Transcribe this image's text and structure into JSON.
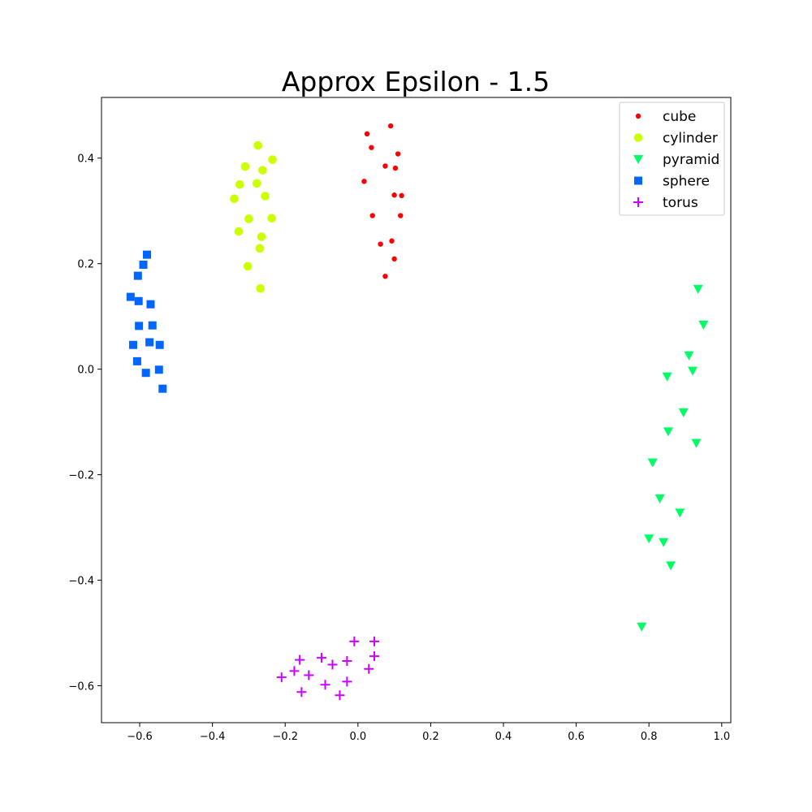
{
  "chart_data": {
    "type": "scatter",
    "title": "Approx Epsilon - 1.5",
    "xlabel": "",
    "ylabel": "",
    "xlim": [
      -0.705,
      1.025
    ],
    "ylim": [
      -0.67,
      0.515
    ],
    "xticks": [
      -0.6,
      -0.4,
      -0.2,
      0.0,
      0.2,
      0.4,
      0.6,
      0.8,
      1.0
    ],
    "xtick_labels": [
      "−0.6",
      "−0.4",
      "−0.2",
      "0.0",
      "0.2",
      "0.4",
      "0.6",
      "0.8",
      "1.0"
    ],
    "yticks": [
      -0.6,
      -0.4,
      -0.2,
      0.0,
      0.2,
      0.4
    ],
    "ytick_labels": [
      "−0.6",
      "−0.4",
      "−0.2",
      "0.0",
      "0.2",
      "0.4"
    ],
    "grid": false,
    "legend_position": "top-right",
    "series": [
      {
        "name": "cube",
        "marker": "dot",
        "color": "#ff0000",
        "points": [
          [
            0.09,
            0.461
          ],
          [
            0.025,
            0.446
          ],
          [
            0.037,
            0.42
          ],
          [
            0.11,
            0.408
          ],
          [
            0.075,
            0.385
          ],
          [
            0.103,
            0.381
          ],
          [
            0.017,
            0.356
          ],
          [
            0.1,
            0.33
          ],
          [
            0.12,
            0.329
          ],
          [
            0.04,
            0.291
          ],
          [
            0.117,
            0.291
          ],
          [
            0.093,
            0.243
          ],
          [
            0.062,
            0.237
          ],
          [
            0.1,
            0.209
          ],
          [
            0.075,
            0.176
          ]
        ]
      },
      {
        "name": "cylinder",
        "marker": "circle",
        "color": "#ccff00",
        "points": [
          [
            -0.275,
            0.424
          ],
          [
            -0.235,
            0.397
          ],
          [
            -0.31,
            0.384
          ],
          [
            -0.262,
            0.377
          ],
          [
            -0.325,
            0.35
          ],
          [
            -0.278,
            0.352
          ],
          [
            -0.255,
            0.328
          ],
          [
            -0.34,
            0.323
          ],
          [
            -0.3,
            0.285
          ],
          [
            -0.237,
            0.286
          ],
          [
            -0.328,
            0.261
          ],
          [
            -0.265,
            0.251
          ],
          [
            -0.27,
            0.229
          ],
          [
            -0.303,
            0.195
          ],
          [
            -0.268,
            0.153
          ]
        ]
      },
      {
        "name": "pyramid",
        "marker": "triangle-down",
        "color": "#00ff66",
        "points": [
          [
            0.935,
            0.152
          ],
          [
            0.95,
            0.084
          ],
          [
            0.91,
            0.026
          ],
          [
            0.92,
            -0.003
          ],
          [
            0.85,
            -0.014
          ],
          [
            0.895,
            -0.082
          ],
          [
            0.853,
            -0.118
          ],
          [
            0.93,
            -0.14
          ],
          [
            0.81,
            -0.177
          ],
          [
            0.83,
            -0.245
          ],
          [
            0.885,
            -0.272
          ],
          [
            0.8,
            -0.321
          ],
          [
            0.84,
            -0.328
          ],
          [
            0.86,
            -0.372
          ],
          [
            0.78,
            -0.488
          ]
        ]
      },
      {
        "name": "sphere",
        "marker": "square",
        "color": "#0066ff",
        "points": [
          [
            -0.58,
            0.217
          ],
          [
            -0.59,
            0.198
          ],
          [
            -0.605,
            0.177
          ],
          [
            -0.625,
            0.137
          ],
          [
            -0.603,
            0.129
          ],
          [
            -0.57,
            0.123
          ],
          [
            -0.565,
            0.083
          ],
          [
            -0.602,
            0.082
          ],
          [
            -0.573,
            0.051
          ],
          [
            -0.545,
            0.046
          ],
          [
            -0.618,
            0.046
          ],
          [
            -0.607,
            0.015
          ],
          [
            -0.547,
            -0.001
          ],
          [
            -0.583,
            -0.007
          ],
          [
            -0.537,
            -0.037
          ]
        ]
      },
      {
        "name": "torus",
        "marker": "plus",
        "color": "#cc00ff",
        "points": [
          [
            -0.01,
            -0.516
          ],
          [
            0.045,
            -0.516
          ],
          [
            0.045,
            -0.544
          ],
          [
            -0.1,
            -0.547
          ],
          [
            -0.16,
            -0.551
          ],
          [
            -0.03,
            -0.553
          ],
          [
            -0.07,
            -0.56
          ],
          [
            0.03,
            -0.568
          ],
          [
            -0.175,
            -0.572
          ],
          [
            -0.135,
            -0.58
          ],
          [
            -0.21,
            -0.584
          ],
          [
            -0.03,
            -0.592
          ],
          [
            -0.09,
            -0.598
          ],
          [
            -0.155,
            -0.612
          ],
          [
            -0.05,
            -0.618
          ]
        ]
      }
    ]
  }
}
